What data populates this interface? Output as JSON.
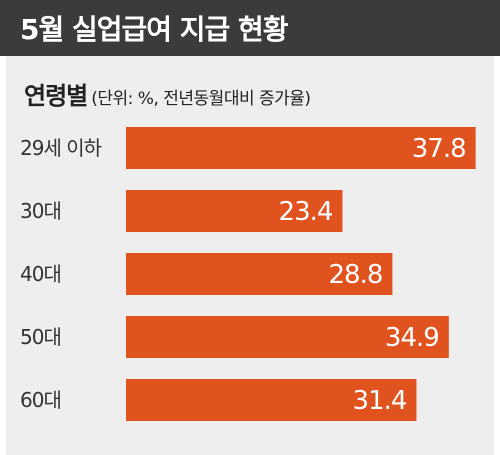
{
  "title": "5월 실업급여 지급 현황",
  "subtitle": {
    "label": "연령별",
    "unit": "(단위: %, 전년동월대비 증가율)"
  },
  "colors": {
    "bar": "#e0531f",
    "title_background": "#3b3b3d",
    "panel_background": "#eeeeee",
    "label_text": "#333333",
    "value_text": "#ffffff"
  },
  "chart_data": {
    "type": "bar",
    "orientation": "horizontal",
    "title": "5월 실업급여 지급 현황",
    "subtitle": "연령별 (단위: %, 전년동월대비 증가율)",
    "categories": [
      "29세 이하",
      "30대",
      "40대",
      "50대",
      "60대"
    ],
    "values": [
      37.8,
      23.4,
      28.8,
      34.9,
      31.4
    ],
    "data_labels": [
      "37.8",
      "23.4",
      "28.8",
      "34.9",
      "31.4"
    ],
    "xlim": [
      0,
      40
    ],
    "grid": false,
    "legend": "none"
  }
}
